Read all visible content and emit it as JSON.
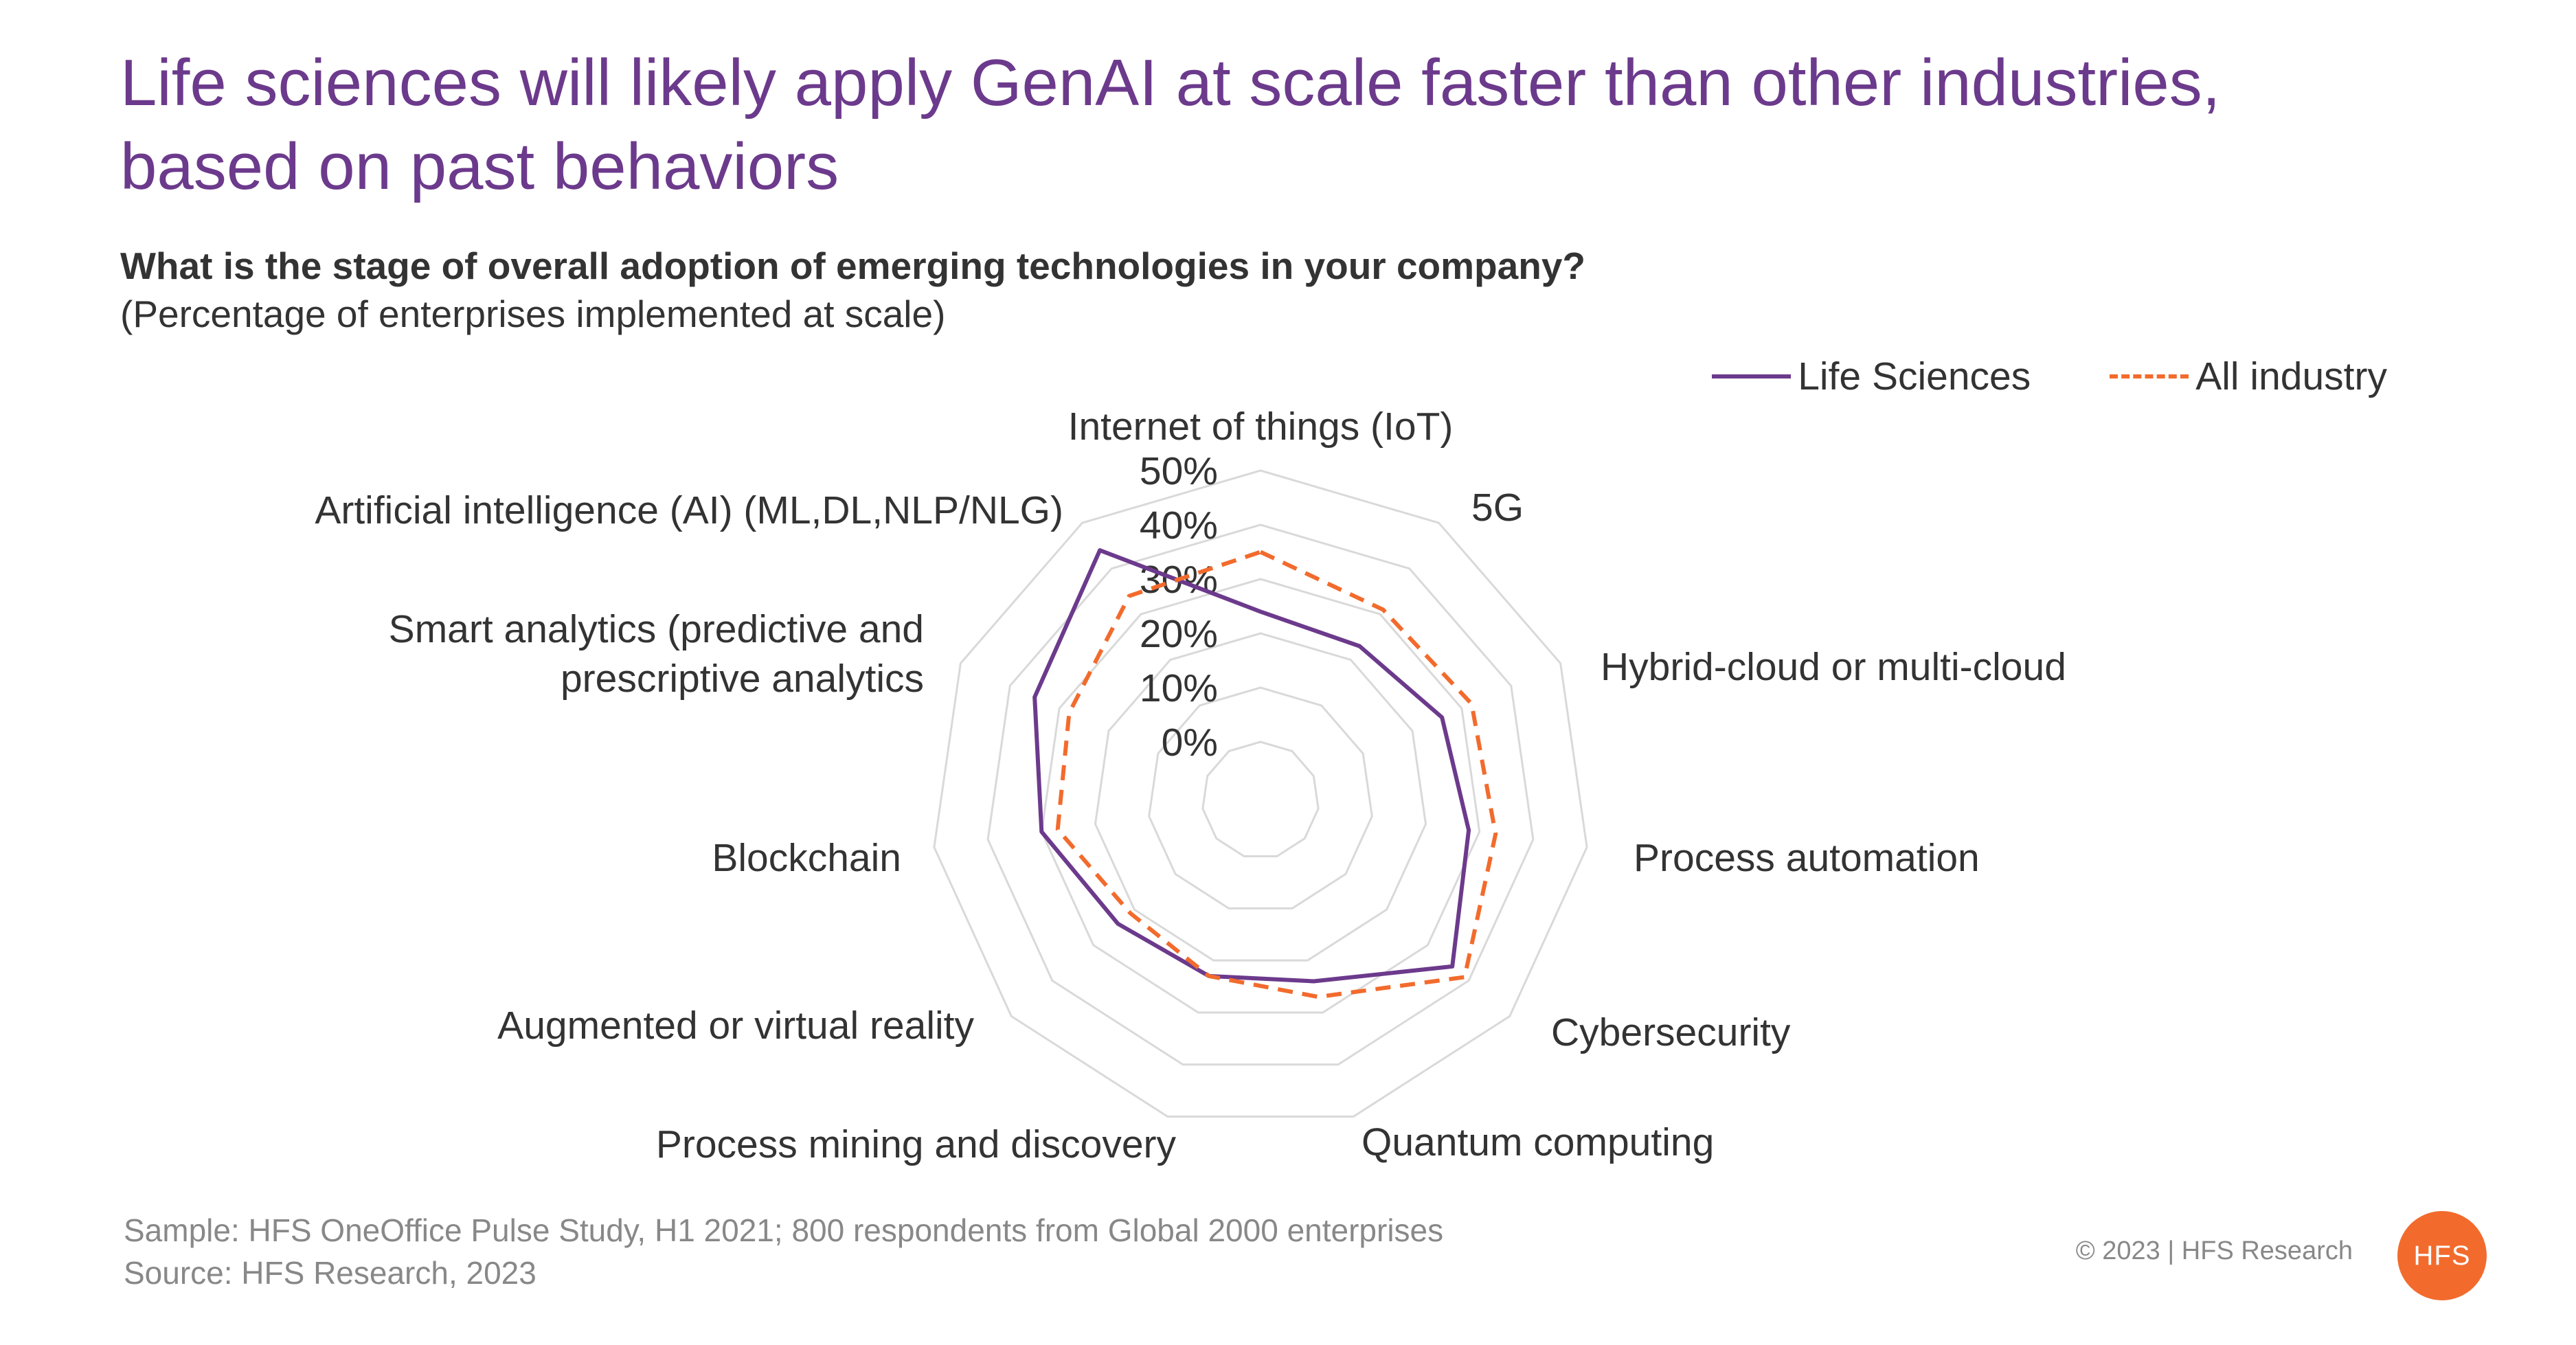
{
  "header": {
    "title": "Life sciences will likely apply GenAI at scale faster than other industries, based on past behaviors",
    "question": "What is the stage of overall adoption of emerging technologies in your company?",
    "subtitle": "(Percentage of enterprises implemented at scale)"
  },
  "colors": {
    "title": "#6c3a8c",
    "life_sciences": "#6c3a8c",
    "all_industry": "#f26b2d",
    "grid": "#d9d9d9",
    "logo": "#f26b2d"
  },
  "chart_data": {
    "type": "radar",
    "categories": [
      "Internet of things (IoT)",
      "5G",
      "Hybrid-cloud or multi-cloud",
      "Process automation",
      "Cybersecurity",
      "Quantum computing",
      "Process mining and discovery",
      "Augmented or virtual reality",
      "Blockchain",
      "Smart analytics (predictive and prescriptive analytics",
      "Artificial intelligence (AI) (ML,DL,NLP/NLG)"
    ],
    "series": [
      {
        "name": "Life Sciences",
        "values": [
          24,
          23,
          26,
          28,
          36,
          24,
          23,
          24,
          30,
          35,
          44
        ],
        "line_style": "solid"
      },
      {
        "name": "All industry",
        "values": [
          35,
          31,
          32,
          33,
          39,
          27,
          23,
          21,
          27,
          28,
          34
        ],
        "line_style": "dashed"
      }
    ],
    "rlim": [
      0,
      50
    ],
    "ticks": [
      "0%",
      "10%",
      "20%",
      "30%",
      "40%",
      "50%"
    ],
    "grid": true,
    "legend_position": "top-right"
  },
  "footer": {
    "sample": "Sample: HFS OneOffice Pulse Study, H1 2021; 800 respondents from Global 2000 enterprises",
    "source": "Source: HFS Research, 2023",
    "copyright": "© 2023 | HFS Research",
    "logo_text": "HFS"
  }
}
